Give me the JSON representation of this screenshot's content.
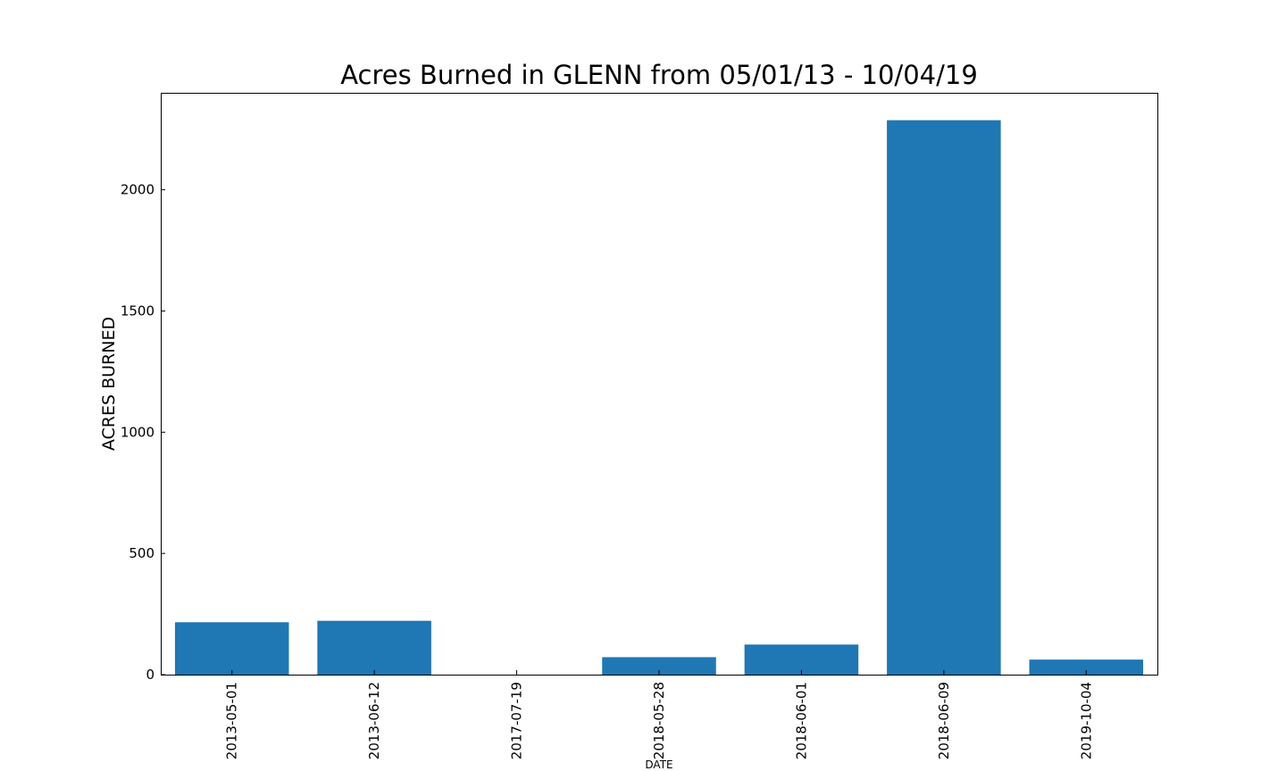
{
  "chart_data": {
    "type": "bar",
    "title": "Acres Burned in GLENN from 05/01/13 - 10/04/19",
    "xlabel": "DATE",
    "ylabel": "ACRES BURNED",
    "categories": [
      "2013-05-01",
      "2013-06-12",
      "2017-07-19",
      "2018-05-28",
      "2018-06-01",
      "2018-06-09",
      "2019-10-04"
    ],
    "values": [
      216,
      222,
      0,
      72,
      124,
      2287,
      62
    ],
    "ylim": [
      0,
      2400
    ],
    "yticks": [
      "0",
      "500",
      "1000",
      "1500",
      "2000"
    ],
    "grid": false,
    "legend": "none",
    "bar_color": "#1f77b4"
  }
}
